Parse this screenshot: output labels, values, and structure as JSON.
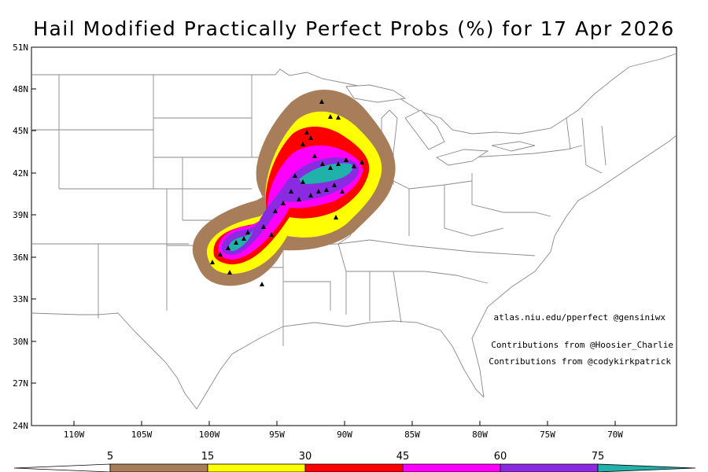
{
  "title": "Hail Modified Practically Perfect Probs (%) for 17 Apr 2026",
  "lat_labels": [
    "51N",
    "48N",
    "45N",
    "42N",
    "39N",
    "36N",
    "33N",
    "30N",
    "27N",
    "24N"
  ],
  "lon_labels": [
    "110W",
    "105W",
    "100W",
    "95W",
    "90W",
    "85W",
    "80W",
    "75W",
    "70W"
  ],
  "credits": {
    "site": "atlas.niu.edu/pperfect @gensiniwx",
    "contrib1": "Contributions from @Hoosier_Charlie",
    "contrib2": "Contributions from @codykirkpatrick"
  },
  "colorbar": {
    "labels": [
      "5",
      "15",
      "30",
      "45",
      "60",
      "75"
    ],
    "colors": {
      "c5": "#a87d5a",
      "c15": "#ffff00",
      "c30": "#ff0000",
      "c45": "#ff00ff",
      "c60": "#8a2be2",
      "c75": "#20b2aa"
    }
  }
}
